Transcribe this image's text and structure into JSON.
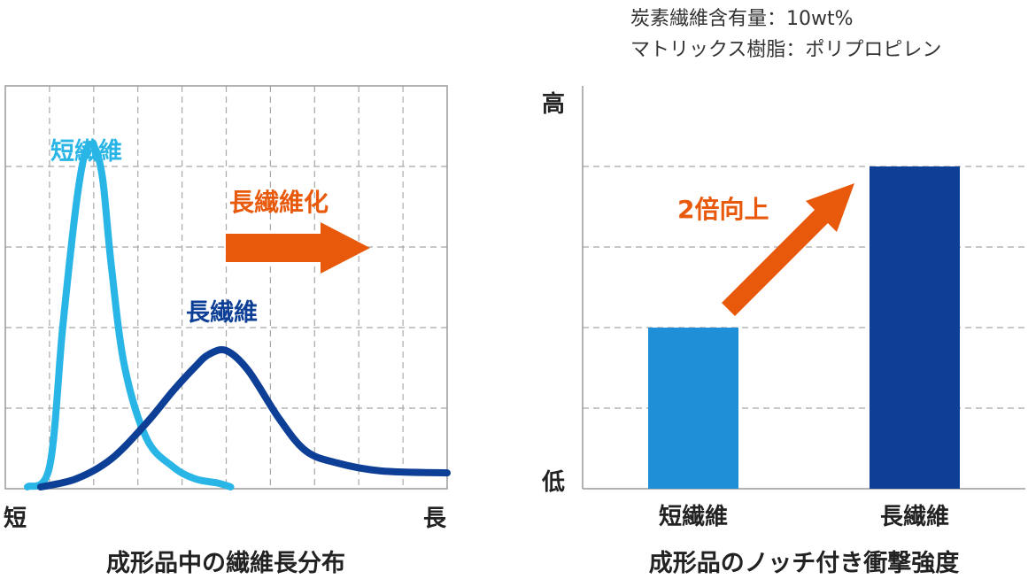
{
  "chart_data": [
    {
      "type": "line",
      "title": "成形品中の繊維長分布",
      "x_axis": {
        "min_label": "短",
        "max_label": "長"
      },
      "grid": true,
      "series": [
        {
          "name": "短繊維",
          "color": "#29b6e6",
          "x": [
            0.05,
            0.1,
            0.13,
            0.16,
            0.18,
            0.2,
            0.22,
            0.24,
            0.27,
            0.32,
            0.38,
            0.43,
            0.48,
            0.51
          ],
          "y": [
            0.0,
            0.05,
            0.4,
            0.7,
            0.83,
            0.85,
            0.77,
            0.55,
            0.3,
            0.12,
            0.05,
            0.02,
            0.01,
            0.0
          ]
        },
        {
          "name": "長繊維",
          "color": "#0d3f96",
          "x": [
            0.08,
            0.16,
            0.24,
            0.32,
            0.38,
            0.43,
            0.46,
            0.5,
            0.55,
            0.62,
            0.68,
            0.75,
            0.85,
            1.0
          ],
          "y": [
            0.0,
            0.02,
            0.07,
            0.16,
            0.24,
            0.3,
            0.33,
            0.34,
            0.29,
            0.17,
            0.09,
            0.06,
            0.04,
            0.035
          ]
        }
      ],
      "annotation": {
        "text": "長繊維化",
        "color": "#e8590c"
      }
    },
    {
      "type": "bar",
      "title": "成形品のノッチ付き衝撃強度",
      "categories": [
        "短繊維",
        "長繊維"
      ],
      "values": [
        1,
        2
      ],
      "colors": [
        "#1f8fd8",
        "#0d3f96"
      ],
      "y_axis": {
        "min_label": "低",
        "max_label": "高"
      },
      "grid": true,
      "annotation": {
        "text": "2倍向上",
        "color": "#e8590c"
      }
    }
  ],
  "conditions": {
    "line1": "炭素繊維含有量：10wt%",
    "line2": "マトリックス樹脂：ポリプロピレン"
  }
}
